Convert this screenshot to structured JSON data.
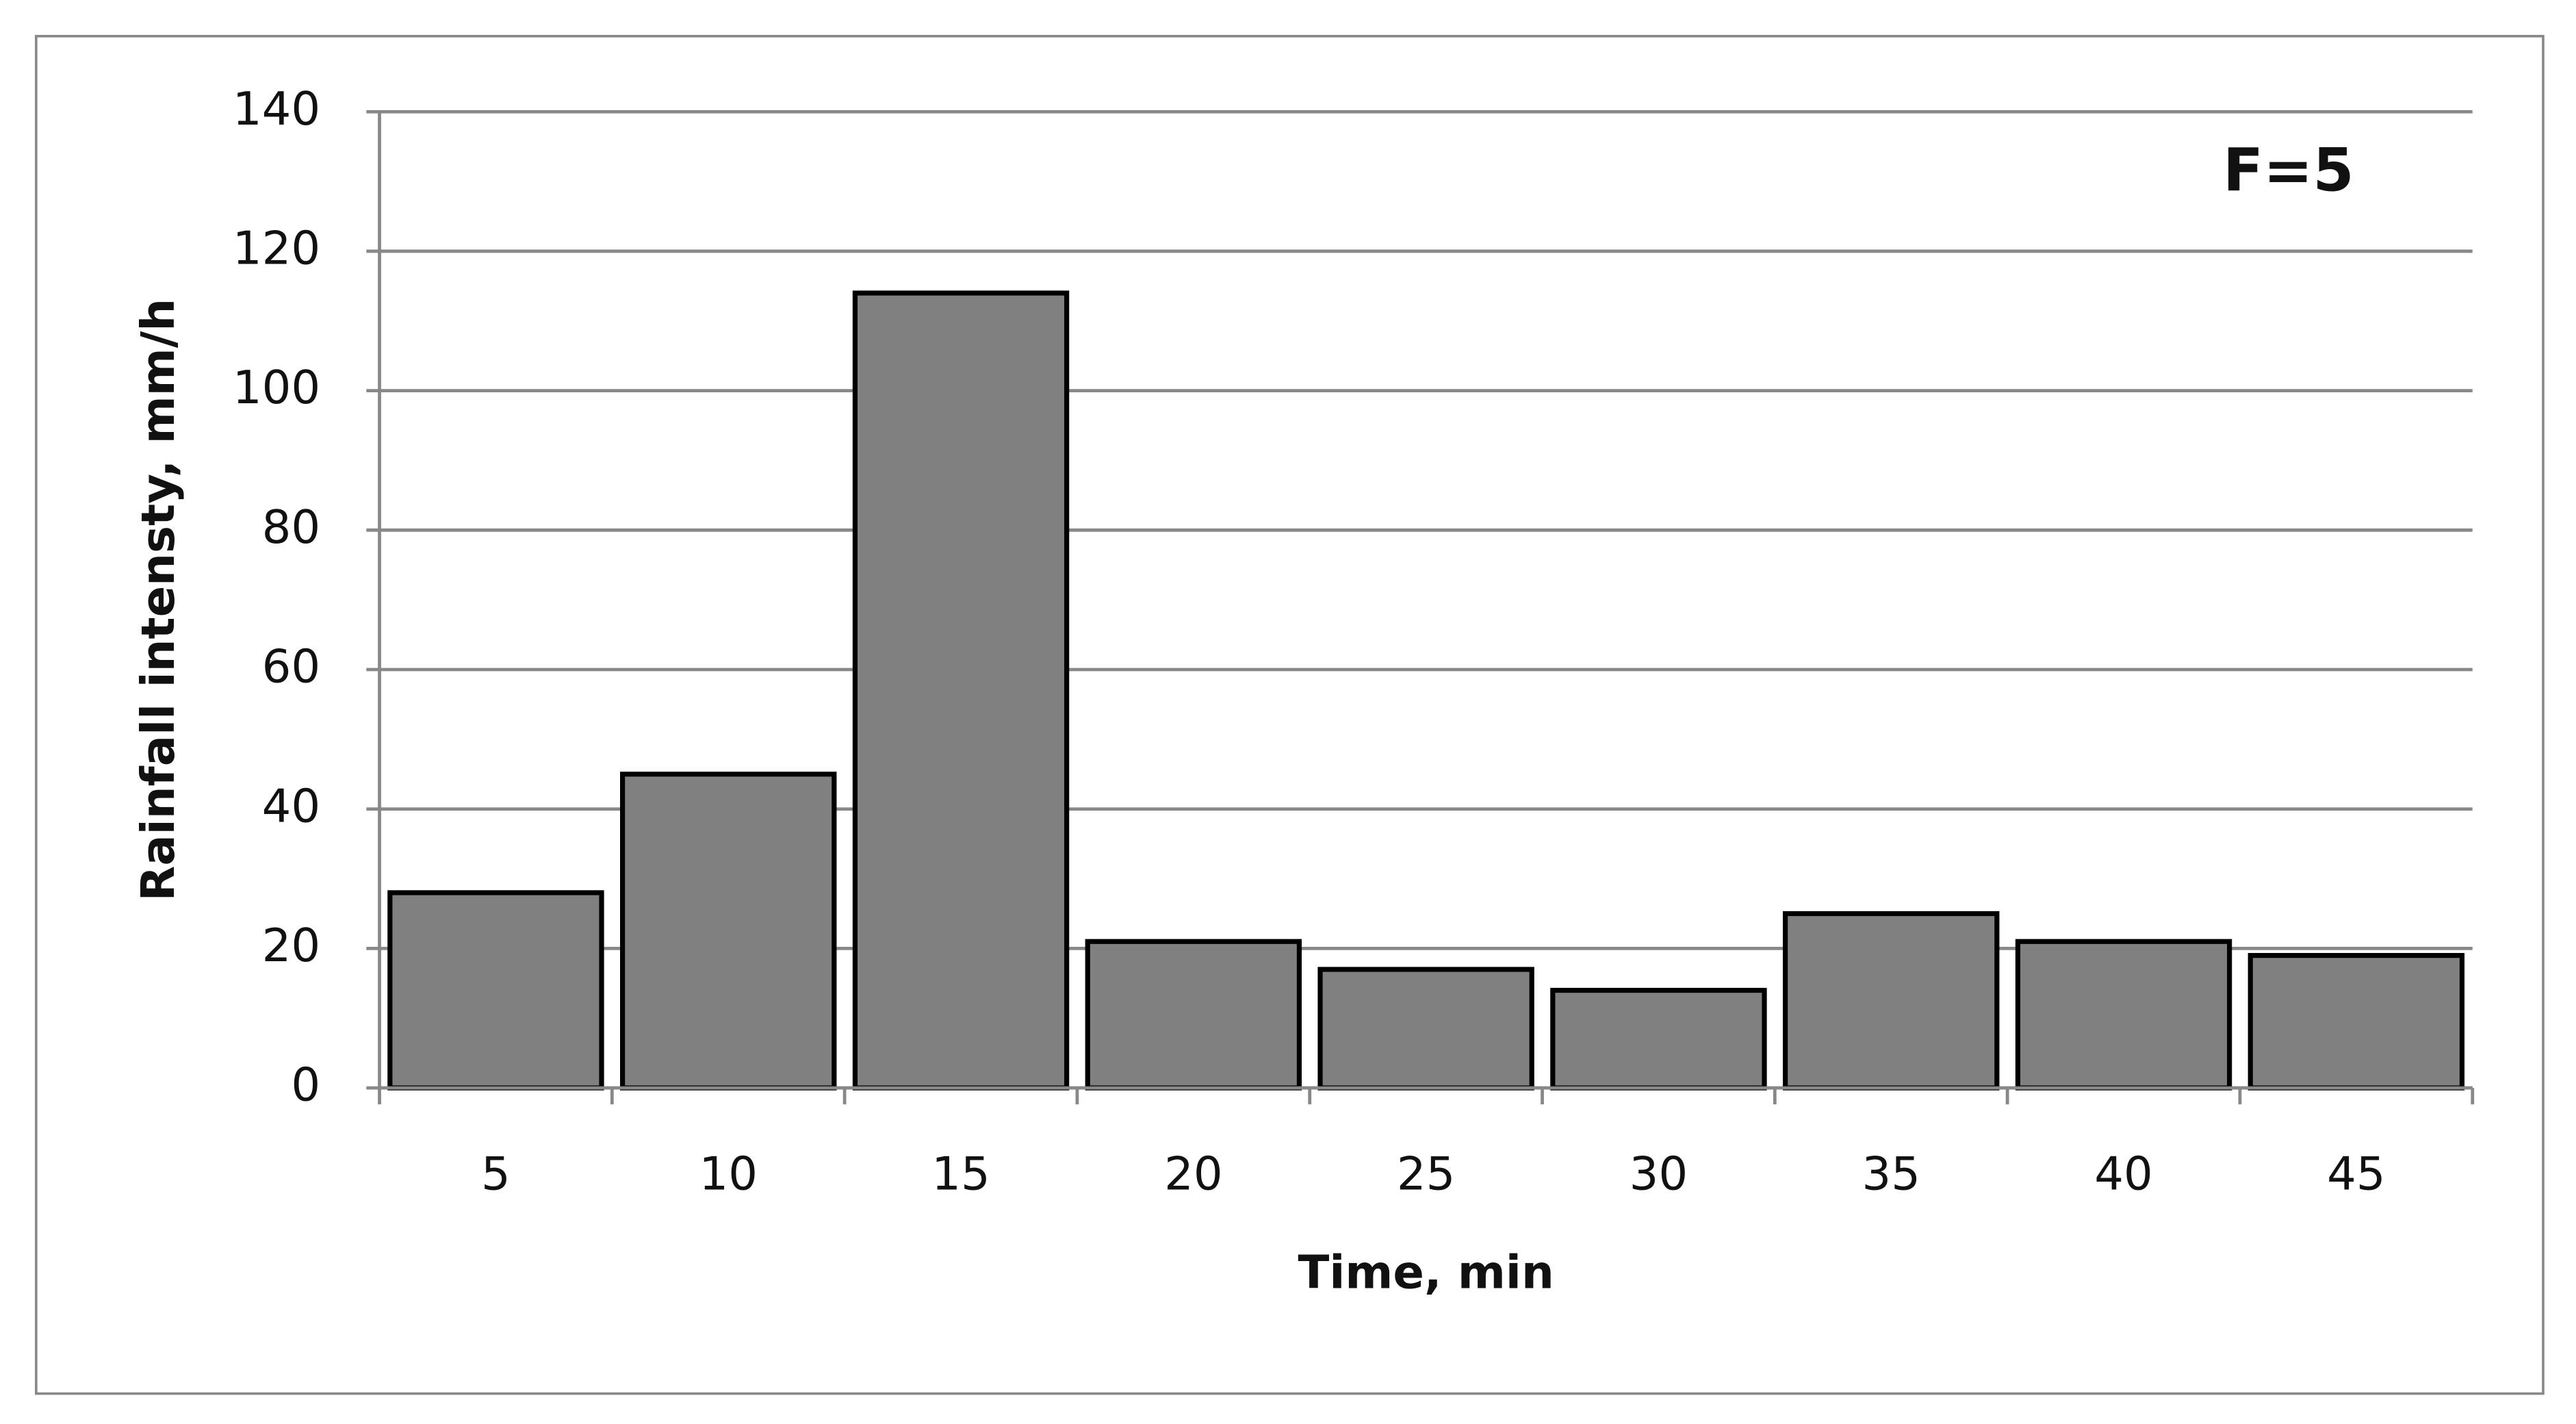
{
  "chart_data": {
    "type": "bar",
    "annotation": "F=5",
    "x_label": "Time, min",
    "y_label": "Rainfall intensty, mm/h",
    "categories": [
      "5",
      "10",
      "15",
      "20",
      "25",
      "30",
      "35",
      "40",
      "45"
    ],
    "values": [
      28,
      45,
      114,
      21,
      17,
      14,
      25,
      21,
      19
    ],
    "color": "#808080",
    "ylim": [
      0,
      140
    ],
    "yticks": [
      0,
      20,
      40,
      60,
      80,
      100,
      120,
      140
    ],
    "grid": true
  }
}
